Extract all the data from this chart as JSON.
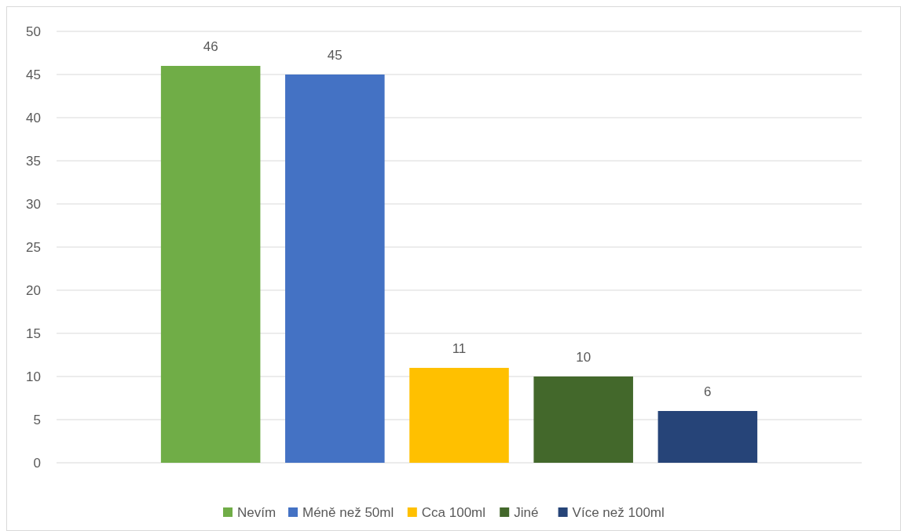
{
  "chart_data": {
    "type": "bar",
    "categories": [
      null
    ],
    "series": [
      {
        "name": "Nevím",
        "color": "#70ad47",
        "values": [
          46
        ]
      },
      {
        "name": "Méně než 50ml",
        "color": "#4472c4",
        "values": [
          45
        ]
      },
      {
        "name": "Cca 100ml",
        "color": "#ffc000",
        "values": [
          11
        ]
      },
      {
        "name": "Jiné",
        "color": "#43682b",
        "values": [
          10
        ]
      },
      {
        "name": "Více než 100ml",
        "color": "#264478",
        "values": [
          6
        ]
      }
    ],
    "ylim": [
      0,
      50
    ],
    "yticks": [
      0,
      5,
      10,
      15,
      20,
      25,
      30,
      35,
      40,
      45,
      50
    ],
    "grid": "y",
    "legend": "bottom",
    "data_labels": true
  }
}
